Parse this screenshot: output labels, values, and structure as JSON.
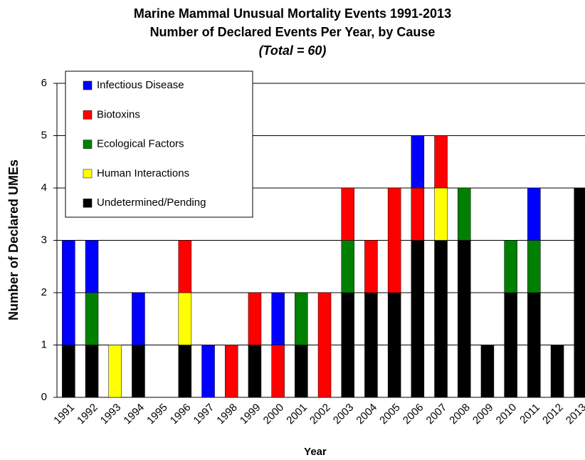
{
  "chart_data": {
    "type": "stacked_bar",
    "title": "Marine Mammal Unusual Mortality Events 1991-2013",
    "subtitle": "Number of Declared Events Per Year, by Cause",
    "note": "(Total = 60)",
    "x_label": "Year",
    "y_label": "Number of Declared UMEs",
    "categories": [
      "1991",
      "1992",
      "1993",
      "1994",
      "1995",
      "1996",
      "1997",
      "1998",
      "1999",
      "2000",
      "2001",
      "2002",
      "2003",
      "2004",
      "2005",
      "2006",
      "2007",
      "2008",
      "2009",
      "2010",
      "2011",
      "2012",
      "2013"
    ],
    "series": [
      {
        "name": "Infectious Disease",
        "color": "#0000ff",
        "values": [
          2,
          1,
          0,
          1,
          0,
          0,
          1,
          0,
          0,
          1,
          0,
          0,
          0,
          0,
          0,
          1,
          0,
          0,
          0,
          0,
          1,
          0,
          0
        ]
      },
      {
        "name": "Biotoxins",
        "color": "#ff0000",
        "values": [
          0,
          0,
          0,
          0,
          0,
          1,
          0,
          1,
          1,
          1,
          0,
          2,
          1,
          1,
          2,
          1,
          1,
          0,
          0,
          0,
          0,
          0,
          0
        ]
      },
      {
        "name": "Ecological Factors",
        "color": "#008000",
        "values": [
          0,
          1,
          0,
          0,
          0,
          0,
          0,
          0,
          0,
          0,
          1,
          0,
          1,
          0,
          0,
          0,
          0,
          1,
          0,
          1,
          1,
          0,
          0
        ]
      },
      {
        "name": "Human Interactions",
        "color": "#ffff00",
        "values": [
          0,
          0,
          1,
          0,
          0,
          1,
          0,
          0,
          0,
          0,
          0,
          0,
          0,
          0,
          0,
          0,
          1,
          0,
          0,
          0,
          0,
          0,
          0
        ]
      },
      {
        "name": "Undetermined/Pending",
        "color": "#000000",
        "values": [
          1,
          1,
          0,
          1,
          0,
          1,
          0,
          0,
          1,
          0,
          1,
          0,
          2,
          2,
          2,
          3,
          3,
          3,
          1,
          2,
          2,
          1,
          4
        ]
      }
    ],
    "ylim": [
      0,
      6
    ],
    "yticks": [
      0,
      1,
      2,
      3,
      4,
      5,
      6
    ],
    "grid": true,
    "legend": "upper left"
  }
}
